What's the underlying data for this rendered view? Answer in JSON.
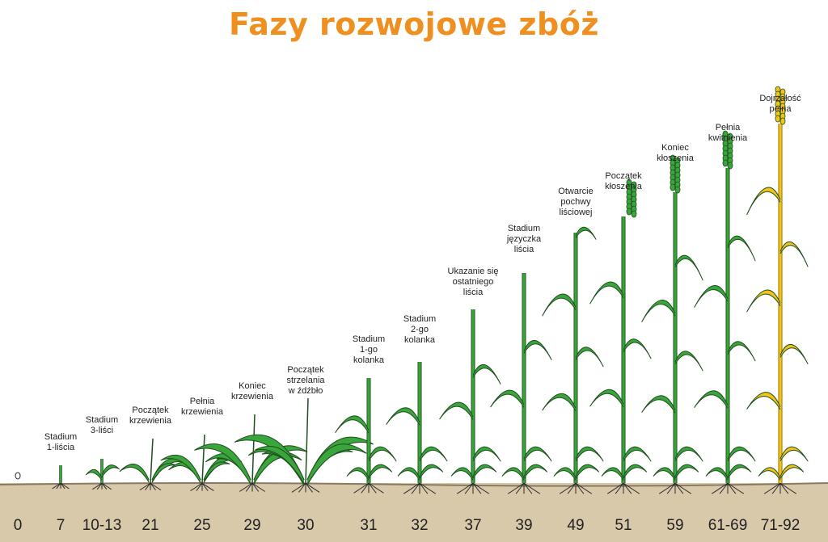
{
  "title": "Fazy rozwojowe zbóż",
  "colors": {
    "title": "#ee8f1f",
    "soil": "#d8c9ab",
    "soil_line": "#8a7a62",
    "plant_green": "#39a53a",
    "plant_dark": "#1f4d1f",
    "ripe": "#f2c416",
    "root": "#2a2a2a"
  },
  "stages": [
    {
      "code": "0",
      "label": ""
    },
    {
      "code": "7",
      "label": "Stadium\n1-liścia"
    },
    {
      "code": "10-13",
      "label": "Stadium\n3-liści"
    },
    {
      "code": "21",
      "label": "Początek\nkrzewienia"
    },
    {
      "code": "25",
      "label": "Pełnia\nkrzewienia"
    },
    {
      "code": "29",
      "label": "Koniec\nkrzewienia"
    },
    {
      "code": "30",
      "label": "Początek\nstrzelania\nw źdźbło"
    },
    {
      "code": "31",
      "label": "Stadium\n1-go\nkolanka"
    },
    {
      "code": "32",
      "label": "Stadium\n2-go\nkolanka"
    },
    {
      "code": "37",
      "label": "Ukazanie się\nostatniego\nliścia"
    },
    {
      "code": "39",
      "label": "Stadium\njęzyczka\nliścia"
    },
    {
      "code": "49",
      "label": "Otwarcie\npochwy\nliściowej"
    },
    {
      "code": "51",
      "label": "Początek\nkłoszenia"
    },
    {
      "code": "59",
      "label": "Koniec\nkłoszenia"
    },
    {
      "code": "61-69",
      "label": "Pełnia\nkwitnienia"
    },
    {
      "code": "71-92",
      "label": "Dojrzałość\npełna"
    }
  ]
}
